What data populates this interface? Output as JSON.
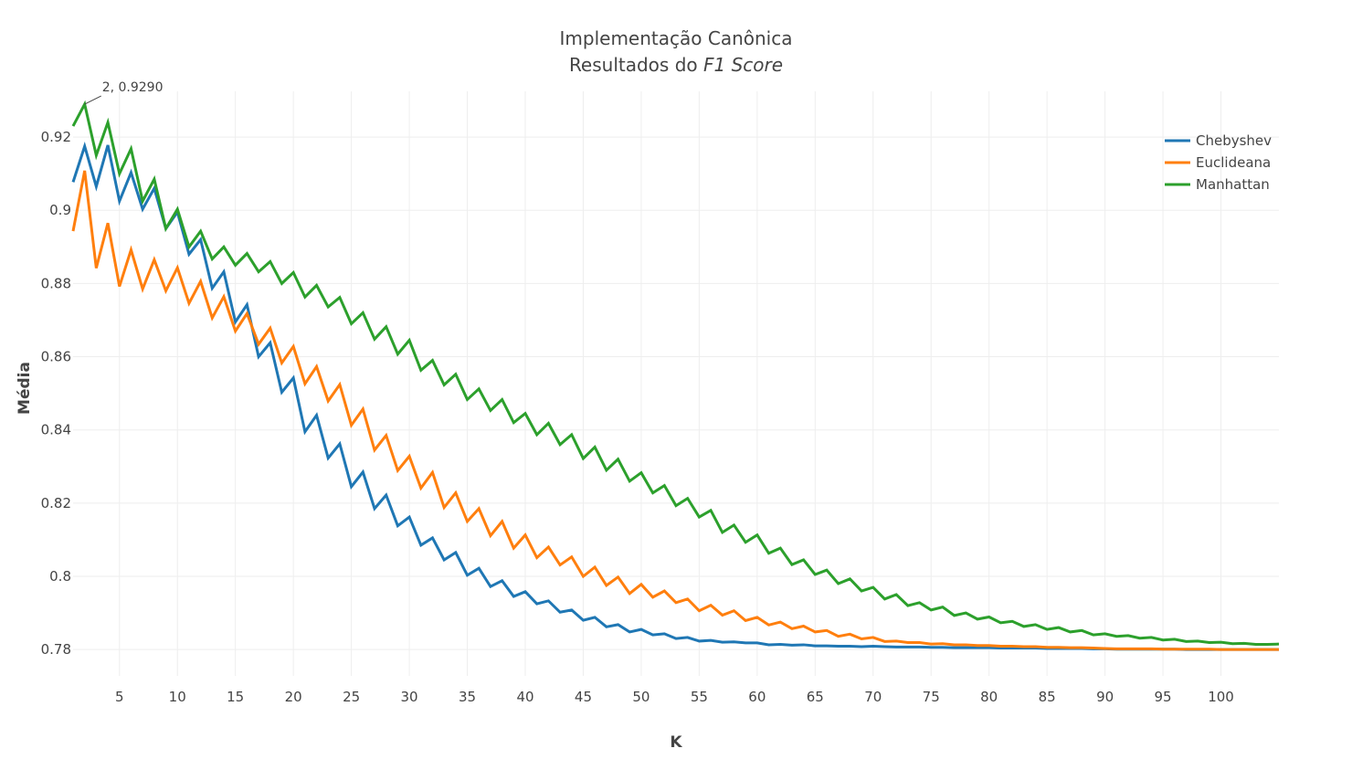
{
  "chart_data": {
    "type": "line",
    "title": "Implementação Canônica",
    "subtitle_prefix": "Resultados do ",
    "subtitle_emphasis": "F1 Score",
    "xlabel": "K",
    "ylabel": "Média",
    "xlim": [
      1,
      105
    ],
    "ylim": [
      0.7728,
      0.9325
    ],
    "x_ticks": [
      5,
      10,
      15,
      20,
      25,
      30,
      35,
      40,
      45,
      50,
      55,
      60,
      65,
      70,
      75,
      80,
      85,
      90,
      95,
      100
    ],
    "y_ticks": [
      0.78,
      0.8,
      0.82,
      0.84,
      0.86,
      0.88,
      0.9,
      0.92
    ],
    "grid": true,
    "legend_position": "top-right",
    "annotation": {
      "x": 2,
      "y": 0.929,
      "text": "2, 0.9290"
    },
    "x": [
      1,
      2,
      3,
      4,
      5,
      6,
      7,
      8,
      9,
      10,
      11,
      12,
      13,
      14,
      15,
      16,
      17,
      18,
      19,
      20,
      21,
      22,
      23,
      24,
      25,
      26,
      27,
      28,
      29,
      30,
      31,
      32,
      33,
      34,
      35,
      36,
      37,
      38,
      39,
      40,
      41,
      42,
      43,
      44,
      45,
      46,
      47,
      48,
      49,
      50,
      51,
      52,
      53,
      54,
      55,
      56,
      57,
      58,
      59,
      60,
      61,
      62,
      63,
      64,
      65,
      66,
      67,
      68,
      69,
      70,
      71,
      72,
      73,
      74,
      75,
      76,
      77,
      78,
      79,
      80,
      81,
      82,
      83,
      84,
      85,
      86,
      87,
      88,
      89,
      90,
      91,
      92,
      93,
      94,
      95,
      96,
      97,
      98,
      99,
      100,
      101,
      102,
      103,
      104,
      105
    ],
    "series": [
      {
        "name": "Chebyshev",
        "color": "#1f77b4",
        "values": [
          0.9077,
          0.9175,
          0.9065,
          0.9178,
          0.9025,
          0.9103,
          0.9003,
          0.906,
          0.895,
          0.8995,
          0.888,
          0.892,
          0.8787,
          0.8832,
          0.8695,
          0.8742,
          0.86,
          0.8638,
          0.8503,
          0.8542,
          0.8395,
          0.844,
          0.8323,
          0.8362,
          0.8245,
          0.8285,
          0.8185,
          0.8222,
          0.8138,
          0.8162,
          0.8085,
          0.8105,
          0.8045,
          0.8065,
          0.8003,
          0.8022,
          0.7972,
          0.7988,
          0.7945,
          0.7958,
          0.7925,
          0.7933,
          0.7902,
          0.7908,
          0.788,
          0.7888,
          0.7862,
          0.7868,
          0.7848,
          0.7855,
          0.784,
          0.7843,
          0.783,
          0.7833,
          0.7823,
          0.7825,
          0.782,
          0.7821,
          0.7818,
          0.7818,
          0.7813,
          0.7814,
          0.7812,
          0.7813,
          0.781,
          0.781,
          0.7809,
          0.7809,
          0.7808,
          0.7809,
          0.7808,
          0.7807,
          0.7807,
          0.7807,
          0.7806,
          0.7806,
          0.7805,
          0.7805,
          0.7805,
          0.7805,
          0.7804,
          0.7804,
          0.7804,
          0.7804,
          0.7803,
          0.7803,
          0.7803,
          0.7803,
          0.7802,
          0.7802,
          0.7801,
          0.7801,
          0.7801,
          0.7801,
          0.7801,
          0.7801,
          0.78,
          0.78,
          0.78,
          0.78,
          0.78,
          0.78,
          0.78,
          0.78,
          0.78
        ]
      },
      {
        "name": "Euclideana",
        "color": "#ff7f0e",
        "values": [
          0.8943,
          0.9108,
          0.8842,
          0.8965,
          0.8792,
          0.8892,
          0.8785,
          0.8865,
          0.878,
          0.8843,
          0.8746,
          0.8806,
          0.8706,
          0.8764,
          0.867,
          0.8718,
          0.8634,
          0.8678,
          0.8583,
          0.8628,
          0.8526,
          0.8573,
          0.8479,
          0.8524,
          0.8413,
          0.8457,
          0.8345,
          0.8385,
          0.8289,
          0.8328,
          0.8241,
          0.8284,
          0.8188,
          0.8228,
          0.815,
          0.8185,
          0.8111,
          0.815,
          0.8077,
          0.8113,
          0.8051,
          0.808,
          0.8031,
          0.8053,
          0.8,
          0.8025,
          0.7975,
          0.7998,
          0.7953,
          0.7978,
          0.7943,
          0.796,
          0.7928,
          0.7938,
          0.7906,
          0.7921,
          0.7894,
          0.7906,
          0.7879,
          0.7888,
          0.7867,
          0.7875,
          0.7857,
          0.7864,
          0.7848,
          0.7852,
          0.7836,
          0.7842,
          0.7829,
          0.7833,
          0.7822,
          0.7823,
          0.7819,
          0.7819,
          0.7815,
          0.7816,
          0.7813,
          0.7813,
          0.7811,
          0.7811,
          0.7809,
          0.7809,
          0.7808,
          0.7808,
          0.7806,
          0.7806,
          0.7805,
          0.7805,
          0.7804,
          0.7803,
          0.7802,
          0.7802,
          0.7802,
          0.7802,
          0.7801,
          0.7801,
          0.7801,
          0.7801,
          0.7801,
          0.78,
          0.78,
          0.78,
          0.78,
          0.78,
          0.78
        ]
      },
      {
        "name": "Manhattan",
        "color": "#2ca02c",
        "values": [
          0.923,
          0.929,
          0.915,
          0.924,
          0.91,
          0.9168,
          0.9025,
          0.9085,
          0.895,
          0.9003,
          0.89,
          0.8943,
          0.8867,
          0.89,
          0.885,
          0.8882,
          0.8832,
          0.886,
          0.88,
          0.883,
          0.8763,
          0.8795,
          0.8736,
          0.8762,
          0.869,
          0.872,
          0.8648,
          0.8682,
          0.8607,
          0.8645,
          0.8563,
          0.859,
          0.8523,
          0.8552,
          0.8483,
          0.8512,
          0.8453,
          0.8483,
          0.842,
          0.8445,
          0.8387,
          0.8418,
          0.836,
          0.8387,
          0.8322,
          0.8353,
          0.829,
          0.832,
          0.826,
          0.8283,
          0.8228,
          0.8248,
          0.8193,
          0.8213,
          0.8162,
          0.818,
          0.812,
          0.814,
          0.8093,
          0.8113,
          0.8063,
          0.8077,
          0.8032,
          0.8045,
          0.8005,
          0.8017,
          0.798,
          0.7993,
          0.796,
          0.797,
          0.7938,
          0.795,
          0.792,
          0.7928,
          0.7908,
          0.7916,
          0.7893,
          0.79,
          0.7883,
          0.7889,
          0.7873,
          0.7877,
          0.7863,
          0.7868,
          0.7855,
          0.786,
          0.7848,
          0.7852,
          0.784,
          0.7843,
          0.7836,
          0.7838,
          0.7831,
          0.7833,
          0.7826,
          0.7828,
          0.7822,
          0.7823,
          0.7819,
          0.782,
          0.7816,
          0.7817,
          0.7814,
          0.7814,
          0.7815
        ]
      }
    ]
  }
}
